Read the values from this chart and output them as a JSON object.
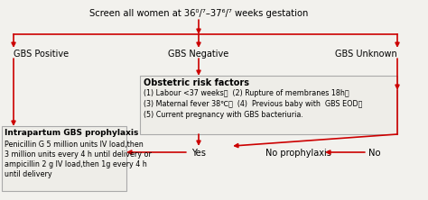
{
  "bg_color": "#f2f1ed",
  "arrow_color": "#cc0000",
  "text_color": "#000000",
  "title": "Screen all women at 36⁰/⁷–37⁶/⁷ weeks gestation",
  "gbs_positive": "GBS Positive",
  "gbs_negative": "GBS Negative",
  "gbs_unknown": "GBS Unknown",
  "obstetric_title": "Obstetric risk factors",
  "obstetric_line1": "(1) Labour <37 weeks；  (2) Rupture of membranes 18h；",
  "obstetric_line2": "(3) Maternal fever 38℃；  (4)  Previous baby with  GBS EOD；",
  "obstetric_line3": "(5) Current pregnancy with GBS bacteriuria.",
  "prophylaxis_title": "Intrapartum GBS prophylaxis",
  "prophylaxis_line1": "Penicillin G 5 million units IV load,then",
  "prophylaxis_line2": "3 million units every 4 h until delivery or",
  "prophylaxis_line3": "ampicillin 2 g IV load,then 1g every 4 h",
  "prophylaxis_line4": "until delivery",
  "yes_label": "Yes",
  "no_label": "No",
  "no_prophylaxis": "No prophylaxis"
}
